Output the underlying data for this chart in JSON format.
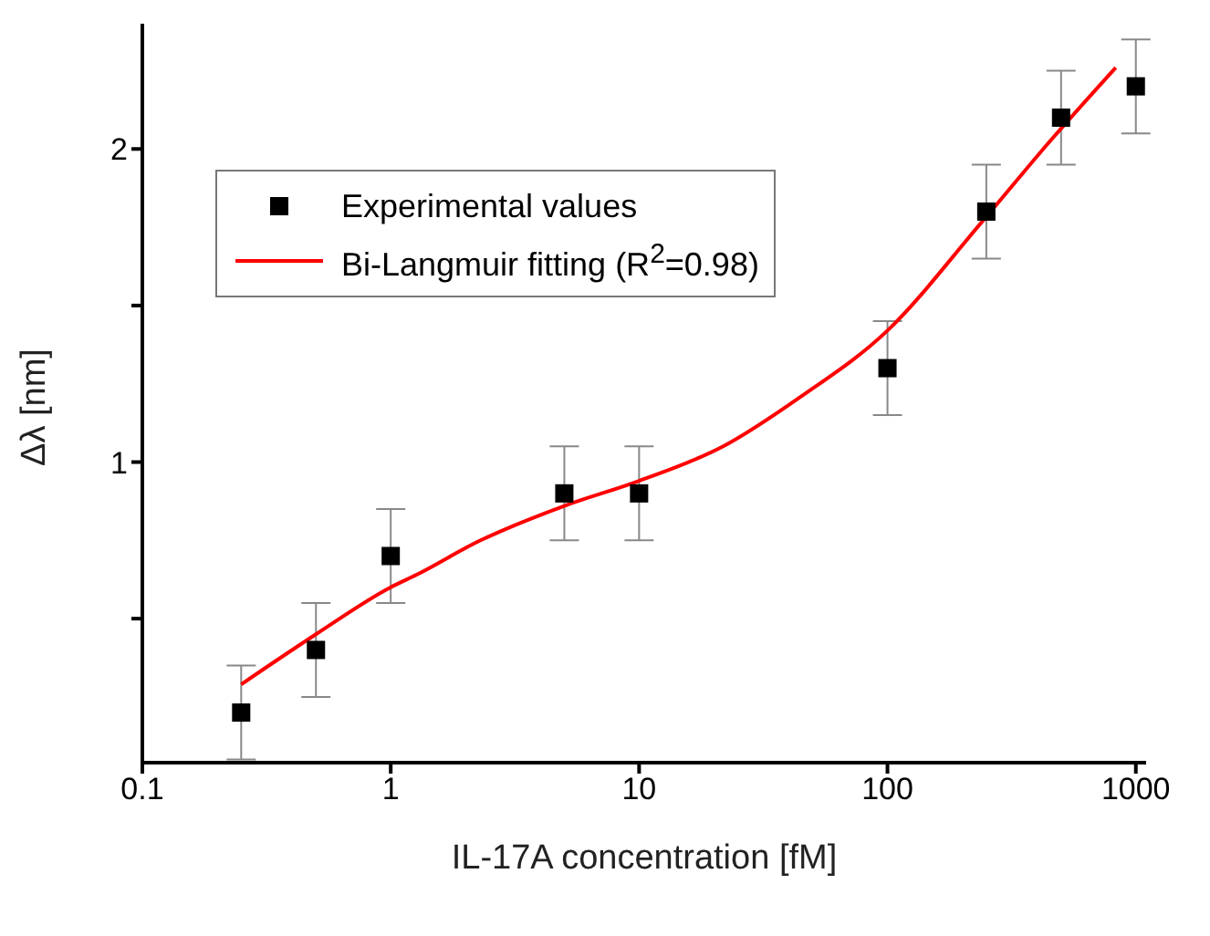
{
  "chart_data": {
    "type": "scatter",
    "xlabel": "IL-17A concentration [fM]",
    "ylabel": "Δλ [nm]",
    "log": "x",
    "xlim": [
      0.1,
      1100
    ],
    "xticks": [
      0.1,
      1,
      10,
      100,
      1000
    ],
    "ylim": [
      0.04,
      2.4
    ],
    "yticks": [
      {
        "value": 0.5,
        "label": null
      },
      1,
      {
        "value": 1.5,
        "label": null
      },
      2
    ],
    "legend": "top left",
    "series": [
      {
        "name": "Experimental values",
        "color": "#000000",
        "marker": "square",
        "x": [
          0.25,
          0.5,
          1,
          5,
          10,
          100,
          250,
          500,
          1000
        ],
        "values": [
          0.2,
          0.4,
          0.7,
          0.9,
          0.9,
          1.3,
          1.8,
          2.1,
          2.2
        ],
        "errors": [
          0.15,
          0.15,
          0.15,
          0.15,
          0.15,
          0.15,
          0.15,
          0.15,
          0.15
        ]
      },
      {
        "type": "line",
        "name": "Bi-Langmuir fitting (R$^{2}$=0.98)",
        "color": "#ff0000",
        "marker": "none",
        "line_style": "solid",
        "x": [
          0.25,
          0.5,
          1,
          1.27,
          2.3,
          3.2,
          5,
          10,
          21.8,
          45,
          100,
          236,
          457,
          830
        ],
        "values": [
          0.29,
          0.45,
          0.6,
          0.64,
          0.75,
          0.8,
          0.86,
          0.94,
          1.05,
          1.21,
          1.42,
          1.76,
          2.03,
          2.26
        ]
      }
    ]
  }
}
